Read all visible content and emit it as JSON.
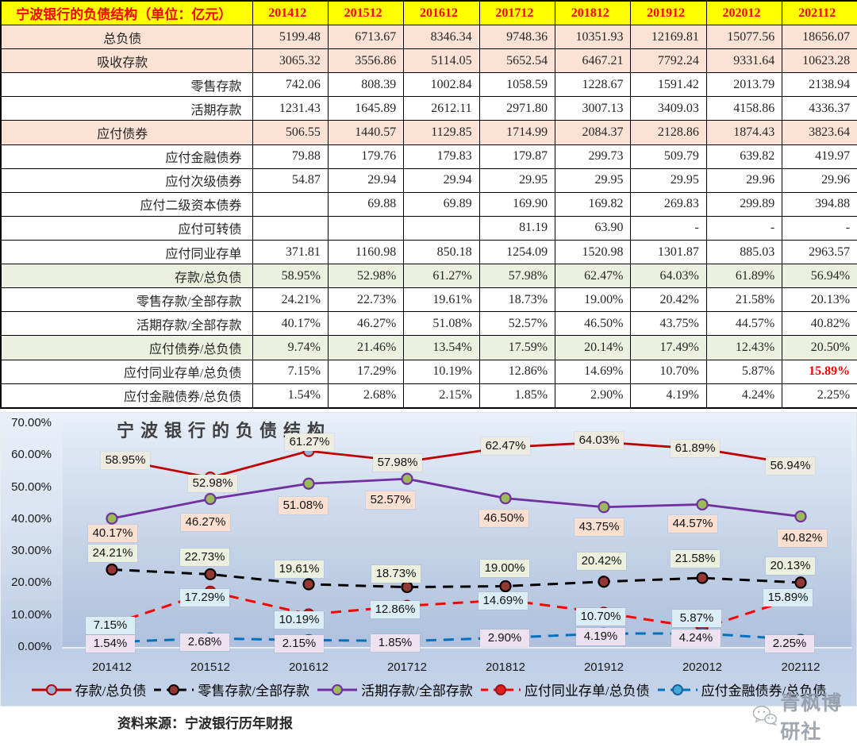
{
  "table": {
    "title": "宁波银行的负债结构（单位：亿元）",
    "years": [
      "201412",
      "201512",
      "201612",
      "201712",
      "201812",
      "201912",
      "202012",
      "202112"
    ],
    "rows": [
      {
        "label": "总负债",
        "bg": "pink",
        "align": "center",
        "values": [
          "5199.48",
          "6713.67",
          "8346.34",
          "9748.36",
          "10351.93",
          "12169.81",
          "15077.56",
          "18656.07"
        ]
      },
      {
        "label": "吸收存款",
        "bg": "pink",
        "align": "center",
        "values": [
          "3065.32",
          "3556.86",
          "5114.05",
          "5652.54",
          "6467.21",
          "7792.24",
          "9331.64",
          "10623.28"
        ]
      },
      {
        "label": "零售存款",
        "bg": "white",
        "align": "right",
        "values": [
          "742.06",
          "808.39",
          "1002.84",
          "1058.59",
          "1228.67",
          "1591.42",
          "2013.79",
          "2138.94"
        ]
      },
      {
        "label": "活期存款",
        "bg": "white",
        "align": "right",
        "values": [
          "1231.43",
          "1645.89",
          "2612.11",
          "2971.80",
          "3007.13",
          "3409.03",
          "4158.86",
          "4336.37"
        ]
      },
      {
        "label": "应付债券",
        "bg": "pink",
        "align": "center",
        "values": [
          "506.55",
          "1440.57",
          "1129.85",
          "1714.99",
          "2084.37",
          "2128.86",
          "1874.43",
          "3823.64"
        ]
      },
      {
        "label": "应付金融债券",
        "bg": "white",
        "align": "right",
        "values": [
          "79.88",
          "179.76",
          "179.83",
          "179.87",
          "299.73",
          "509.79",
          "639.82",
          "419.97"
        ]
      },
      {
        "label": "应付次级债券",
        "bg": "white",
        "align": "right",
        "values": [
          "54.87",
          "29.94",
          "29.94",
          "29.95",
          "29.95",
          "29.95",
          "29.96",
          "29.96"
        ]
      },
      {
        "label": "应付二级资本债券",
        "bg": "white",
        "align": "right",
        "values": [
          "",
          "69.88",
          "69.89",
          "169.90",
          "169.82",
          "269.83",
          "299.89",
          "394.88"
        ]
      },
      {
        "label": "应付可转债",
        "bg": "white",
        "align": "right",
        "values": [
          "",
          "",
          "",
          "81.19",
          "63.90",
          "-",
          "-",
          "-"
        ]
      },
      {
        "label": "应付同业存单",
        "bg": "white",
        "align": "right",
        "values": [
          "371.81",
          "1160.98",
          "850.18",
          "1254.09",
          "1520.98",
          "1301.87",
          "885.03",
          "2963.57"
        ]
      },
      {
        "label": "存款/总负债",
        "bg": "green",
        "align": "right",
        "values": [
          "58.95%",
          "52.98%",
          "61.27%",
          "57.98%",
          "62.47%",
          "64.03%",
          "61.89%",
          "56.94%"
        ]
      },
      {
        "label": "零售存款/全部存款",
        "bg": "white",
        "align": "right",
        "values": [
          "24.21%",
          "22.73%",
          "19.61%",
          "18.73%",
          "19.00%",
          "20.42%",
          "21.58%",
          "20.13%"
        ]
      },
      {
        "label": "活期存款/全部存款",
        "bg": "white",
        "align": "right",
        "values": [
          "40.17%",
          "46.27%",
          "51.08%",
          "52.57%",
          "46.50%",
          "43.75%",
          "44.57%",
          "40.82%"
        ]
      },
      {
        "label": "应付债券/总负债",
        "bg": "green",
        "align": "right",
        "values": [
          "9.74%",
          "21.46%",
          "13.54%",
          "17.59%",
          "20.14%",
          "17.49%",
          "12.43%",
          "20.50%"
        ]
      },
      {
        "label": "应付同业存单/总负债",
        "bg": "white",
        "align": "right",
        "values": [
          "7.15%",
          "17.29%",
          "10.19%",
          "12.86%",
          "14.69%",
          "10.70%",
          "5.87%",
          "15.89%"
        ],
        "red_cols": [
          7
        ]
      },
      {
        "label": "应付金融债券/总负债",
        "bg": "white",
        "align": "right",
        "values": [
          "1.54%",
          "2.68%",
          "2.15%",
          "1.85%",
          "2.90%",
          "4.19%",
          "4.24%",
          "2.25%"
        ]
      }
    ],
    "header_bg": "#FFFF00",
    "header_color": "#FF0000"
  },
  "chart_data": {
    "type": "line",
    "title": "宁波银行的负债结构",
    "categories": [
      "201412",
      "201512",
      "201612",
      "201712",
      "201812",
      "201912",
      "202012",
      "202112"
    ],
    "y_axis": {
      "min": 0,
      "max": 70,
      "step": 10,
      "tick_format": "percent",
      "tick_labels": [
        "0.00%",
        "10.00%",
        "20.00%",
        "30.00%",
        "40.00%",
        "50.00%",
        "60.00%",
        "70.00%"
      ]
    },
    "grid": "off",
    "legend_position": "bottom",
    "data_labels": "on",
    "series": [
      {
        "name": "存款/总负债",
        "values": [
          58.95,
          52.98,
          61.27,
          57.98,
          62.47,
          64.03,
          61.89,
          56.94
        ],
        "line_style": "solid",
        "color": "#C00000",
        "marker_fill": "#95B3D7",
        "marker_stroke": "#C00000",
        "label_bg": "#EEECE1",
        "label_offsets": [
          [
            17,
            2
          ],
          [
            3,
            7
          ],
          [
            1,
            -11
          ],
          [
            -12,
            2
          ],
          [
            0,
            -1
          ],
          [
            -6,
            -2
          ],
          [
            -9,
            -1
          ],
          [
            -13,
            1
          ]
        ]
      },
      {
        "name": "零售存款/全部存款",
        "values": [
          24.21,
          22.73,
          19.61,
          18.73,
          19.0,
          20.42,
          21.58,
          20.13
        ],
        "line_style": "dashed",
        "color": "#000000",
        "marker_fill": "#953735",
        "marker_stroke": "#000000",
        "label_bg": "#ECF1DF",
        "label_offsets": [
          [
            1,
            -20
          ],
          [
            -7,
            -21
          ],
          [
            -12,
            -19
          ],
          [
            -14,
            -17
          ],
          [
            -1,
            -22
          ],
          [
            -3,
            -26
          ],
          [
            -9,
            -24
          ],
          [
            -13,
            -21
          ]
        ]
      },
      {
        "name": "活期存款/全部存款",
        "values": [
          40.17,
          46.27,
          51.08,
          52.57,
          46.5,
          43.75,
          44.57,
          40.82
        ],
        "line_style": "solid",
        "color": "#7030A0",
        "marker_fill": "#9BBB59",
        "marker_stroke": "#7030A0",
        "label_bg": "#FBE0D2",
        "label_offsets": [
          [
            1,
            19
          ],
          [
            -6,
            29
          ],
          [
            -7,
            28
          ],
          [
            -21,
            27
          ],
          [
            -2,
            25
          ],
          [
            -6,
            25
          ],
          [
            -12,
            25
          ],
          [
            2,
            27
          ]
        ]
      },
      {
        "name": "应付同业存单/总负债",
        "values": [
          7.15,
          17.29,
          10.19,
          12.86,
          14.69,
          10.7,
          5.87,
          15.89
        ],
        "line_style": "dashed",
        "color": "#FF0000",
        "marker_fill": "#E02020",
        "marker_stroke": "#8B1A1A",
        "label_bg": "#DCEEF5",
        "label_offsets": [
          [
            -2,
            2
          ],
          [
            -7,
            8
          ],
          [
            -12,
            7
          ],
          [
            -15,
            5
          ],
          [
            -3,
            1
          ],
          [
            -4,
            5
          ],
          [
            -7,
            -12
          ],
          [
            -16,
            2
          ]
        ]
      },
      {
        "name": "应付金融债券/总负债",
        "values": [
          1.54,
          2.68,
          2.15,
          1.85,
          2.9,
          4.19,
          4.24,
          2.25
        ],
        "line_style": "dashed",
        "color": "#0070C0",
        "marker_fill": "#3FA9DC",
        "marker_stroke": "#1C5F93",
        "label_bg": "#EEE2F0",
        "label_offsets": [
          [
            -2,
            2
          ],
          [
            -7,
            5
          ],
          [
            -12,
            5
          ],
          [
            -15,
            2
          ],
          [
            -1,
            1
          ],
          [
            -4,
            4
          ],
          [
            -8,
            6
          ],
          [
            -14,
            5
          ]
        ]
      }
    ]
  },
  "footer": {
    "source_note": "资料来源：宁波银行历年财报",
    "watermark_text": "青枫博研社"
  }
}
